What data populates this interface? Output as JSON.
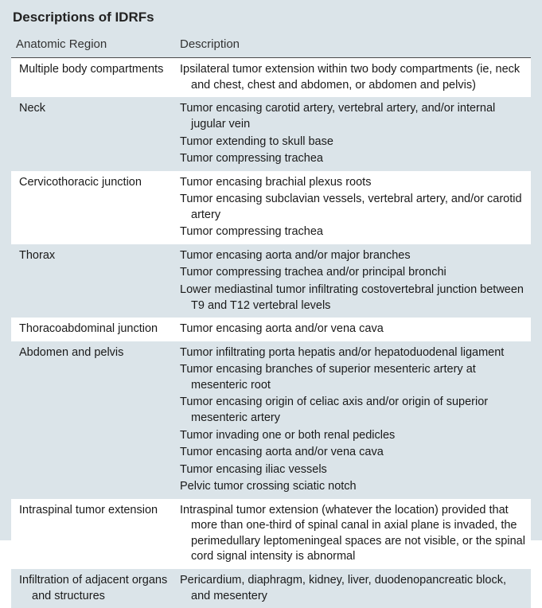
{
  "title": "Descriptions of IDRFs",
  "columns": [
    "Anatomic Region",
    "Description"
  ],
  "rows": [
    {
      "region": "Multiple body compartments",
      "descriptions": [
        "Ipsilateral tumor extension within two body compartments (ie, neck and chest, chest and abdomen, or abdomen and pelvis)"
      ],
      "shade": "white"
    },
    {
      "region": "Neck",
      "descriptions": [
        "Tumor encasing carotid artery, vertebral artery, and/or internal jugular vein",
        "Tumor extending to skull base",
        "Tumor compressing trachea"
      ],
      "shade": "grey"
    },
    {
      "region": "Cervicothoracic junction",
      "descriptions": [
        "Tumor encasing brachial plexus roots",
        "Tumor encasing subclavian vessels, vertebral artery, and/or carotid artery",
        "Tumor compressing trachea"
      ],
      "shade": "white"
    },
    {
      "region": "Thorax",
      "descriptions": [
        "Tumor encasing aorta and/or major branches",
        "Tumor compressing trachea and/or principal bronchi",
        "Lower mediastinal tumor infiltrating costovertebral junction between T9 and T12 vertebral levels"
      ],
      "shade": "grey"
    },
    {
      "region": "Thoracoabdominal junction",
      "descriptions": [
        "Tumor encasing aorta and/or vena cava"
      ],
      "shade": "white"
    },
    {
      "region": "Abdomen and pelvis",
      "descriptions": [
        "Tumor infiltrating porta hepatis and/or hepatoduodenal ligament",
        "Tumor encasing branches of superior mesenteric artery at mesenteric root",
        "Tumor encasing origin of celiac axis and/or origin of superior mesenteric artery",
        "Tumor invading one or both renal pedicles",
        "Tumor encasing aorta and/or vena cava",
        "Tumor encasing iliac vessels",
        "Pelvic tumor crossing sciatic notch"
      ],
      "shade": "grey"
    },
    {
      "region": "Intraspinal tumor extension",
      "descriptions": [
        "Intraspinal tumor extension (whatever the location) provided that more than one-third of spinal canal in axial plane is invaded, the perimedullary leptomeningeal spaces are not visible, or the spinal cord signal intensity is abnormal"
      ],
      "shade": "white"
    },
    {
      "region": "Infiltration of adjacent organs and structures",
      "descriptions": [
        "Pericardium, diaphragm, kidney, liver, duodenopancreatic block, and mesentery"
      ],
      "shade": "grey"
    }
  ]
}
